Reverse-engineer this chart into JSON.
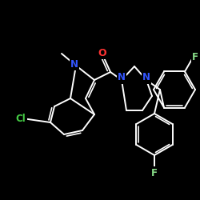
{
  "bg": "#000000",
  "bc": "#ffffff",
  "lw": 1.4,
  "doff": 0.011,
  "fs": 8.5,
  "colors": {
    "O": "#ff3333",
    "N": "#3355ff",
    "Cl": "#44cc44",
    "F": "#88dd88"
  }
}
